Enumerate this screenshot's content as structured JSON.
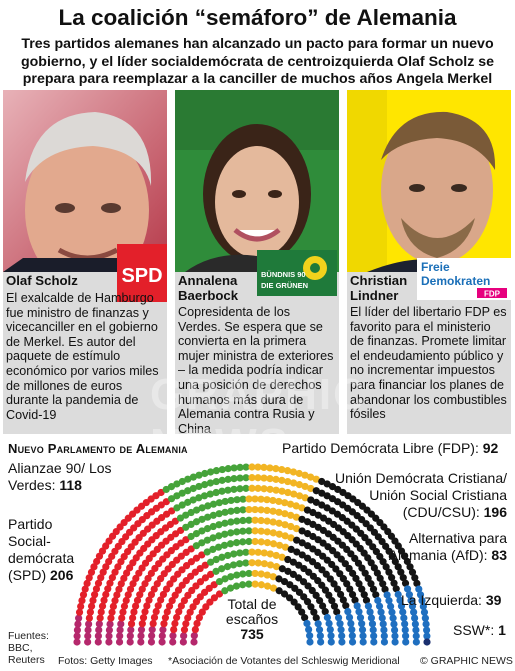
{
  "title": "La coalición “semáforo” de Alemania",
  "subtitle": "Tres partidos alemanes han alcanzado un pacto para formar un nuevo gobierno, y el líder socialdemócrata de centroizquierda Olaf Scholz se prepara para reemplazar a la canciller de muchos años Angela Merkel",
  "profiles": [
    {
      "name": "Olaf Scholz",
      "logo": "SPD",
      "description": "El exalcalde de Hamburgo fue ministro de finanzas y vicecanciller en el gobierno de Merkel. Es autor del paquete de estímulo económico por varios miles de millones de euros durante la pandemia de Covid-19"
    },
    {
      "name": "Annalena Baerbock",
      "logo_line1": "BÜNDNIS 90",
      "logo_line2": "DIE GRÜNEN",
      "description": "Copresidenta de los Verdes. Se espera que se convierta en la primera mujer ministra de exteriores – la medida podría indicar una posición de derechos humanos más dura de Alemania contra Rusia y China"
    },
    {
      "name": "Christian Lindner",
      "logo_line1": "Freie",
      "logo_line2": "Demokraten",
      "logo_line3": "FDP",
      "description": "El líder del libertario FDP es favorito para el ministerio de finanzas. Promete limitar el endeudamiento público y no incrementar impuestos para financiar los planes de abandonar los combustibles fósiles"
    }
  ],
  "parliament": {
    "heading": "Nuevo Parlamento de Alemania",
    "total_label": "Total de escaños",
    "total": 735,
    "labels": {
      "fdp": "Partido Demócrata Libre (FDP):",
      "fdp_seats": "92",
      "greens": "Alianzae 90/ Los Verdes:",
      "greens_seats": "118",
      "cdu": "Unión Demócrata Cristiana/ Unión Social Cristiana (CDU/CSU):",
      "cdu_seats": "196",
      "spd": "Partido Social-demócrata (SPD)",
      "spd_seats": "206",
      "afd": "Alternativa para Alemania (AfD):",
      "afd_seats": "83",
      "left": "La Izquierda:",
      "left_seats": "39",
      "ssw": "SSW*:",
      "ssw_seats": "1"
    }
  },
  "chart_data": {
    "type": "parliament",
    "title": "Nuevo Parlamento de Alemania",
    "categories": [
      "La Izquierda",
      "SPD",
      "Los Verdes",
      "FDP",
      "CDU/CSU",
      "AfD",
      "SSW"
    ],
    "values": [
      39,
      206,
      118,
      92,
      196,
      83,
      1
    ],
    "colors": [
      "#b5286c",
      "#e3202a",
      "#46a33a",
      "#f2b523",
      "#141414",
      "#1f6fc0",
      "#1b2f6e"
    ],
    "total": 735
  },
  "footer": {
    "sources": "Fuentes: BBC, Reuters",
    "photos": "Fotos: Getty Images",
    "note": "*Asociación de Votantes del Schleswig Meridional",
    "credit": "© GRAPHIC NEWS"
  }
}
